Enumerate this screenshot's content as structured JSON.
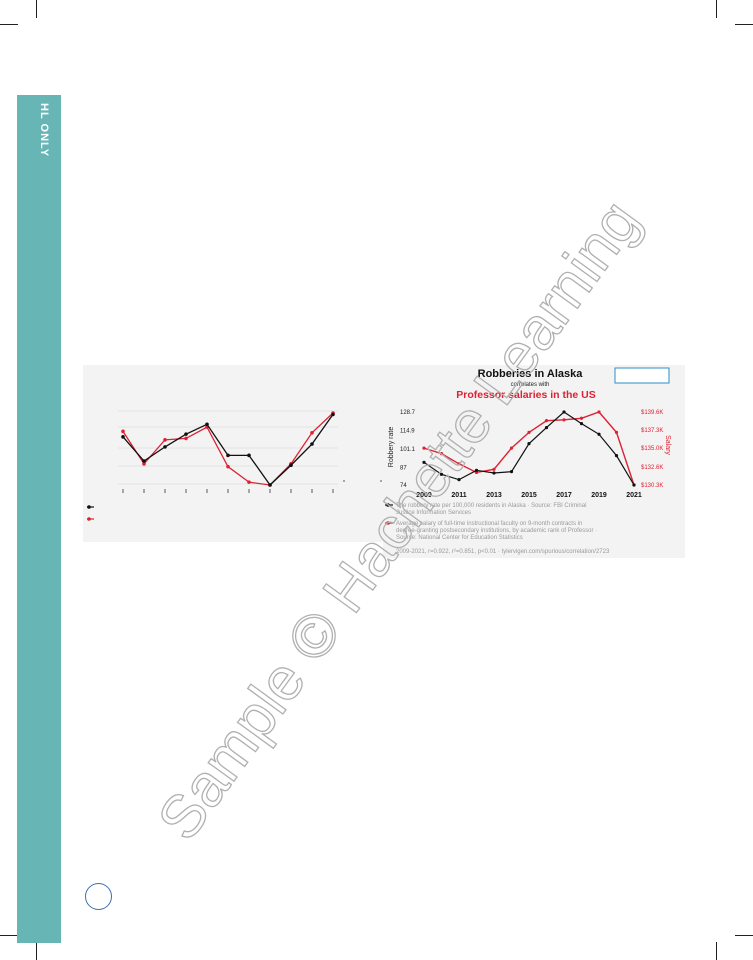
{
  "sidebar": {
    "label": "HL ONLY"
  },
  "watermark": {
    "text": "Sample © Hachette Learning"
  },
  "left_chart": {
    "chart_data": {
      "type": "line",
      "x": [
        1,
        2,
        3,
        4,
        5,
        6,
        7,
        8,
        9,
        10,
        11
      ],
      "series": [
        {
          "values": [
            101.1,
            84,
            94,
            103,
            110,
            88,
            88,
            67,
            81,
            96,
            117
          ]
        },
        {
          "values": [
            105,
            82,
            99,
            100,
            108,
            80,
            69,
            67,
            82,
            104,
            118
          ]
        }
      ],
      "xlabel": "",
      "ylabel": ""
    }
  },
  "right_chart": {
    "title": "Robberies in Alaska",
    "correlates": "correlates with",
    "subtitle": "Professor salaries in the US",
    "ylabel_left": "Robbery rate",
    "ylabel_right": "Salary",
    "legend": [
      {
        "label": "The robbery rate per 100,000 residents in Alaska · Source: FBI Criminal Justice Information Services",
        "color": "#111111"
      },
      {
        "label": "Average salary of full-time instructional faculty on 9-month contracts in degree-granting postsecondary institutions, by academic rank of Professor · Source: National Center for Education Statistics",
        "color": "#dd2233"
      }
    ],
    "footer": "2009-2021, r=0.922, r²=0.851, p<0.01 · tylervigen.com/spurious/correlation/2723",
    "chart_data": {
      "type": "line",
      "x_ticks": [
        "2009",
        "2011",
        "2013",
        "2015",
        "2017",
        "2019",
        "2021"
      ],
      "y_left_ticks": [
        "128.7",
        "114.9",
        "101.1",
        "87",
        "74"
      ],
      "y_right_ticks": [
        "$139.6K",
        "$137.3K",
        "$135.0K",
        "$132.6K",
        "$130.3K"
      ],
      "series": [
        {
          "name": "Robbery rate",
          "axis": "left",
          "x": [
            2009,
            2010,
            2011,
            2012,
            2013,
            2014,
            2015,
            2016,
            2017,
            2018,
            2019,
            2020,
            2021
          ],
          "values": [
            91,
            82,
            78,
            85,
            83,
            84,
            105,
            117,
            128.7,
            120,
            112,
            96,
            74
          ]
        },
        {
          "name": "Salary",
          "axis": "right",
          "x": [
            2009,
            2010,
            2011,
            2012,
            2013,
            2014,
            2015,
            2016,
            2017,
            2018,
            2019,
            2020,
            2021
          ],
          "values": [
            135.0,
            134.3,
            133.0,
            131.9,
            132.3,
            135.0,
            137.0,
            138.5,
            138.6,
            138.8,
            139.6,
            137.0,
            130.3
          ]
        }
      ],
      "y_left_lim": [
        74,
        128.7
      ],
      "y_right_lim": [
        130.3,
        139.6
      ]
    }
  }
}
